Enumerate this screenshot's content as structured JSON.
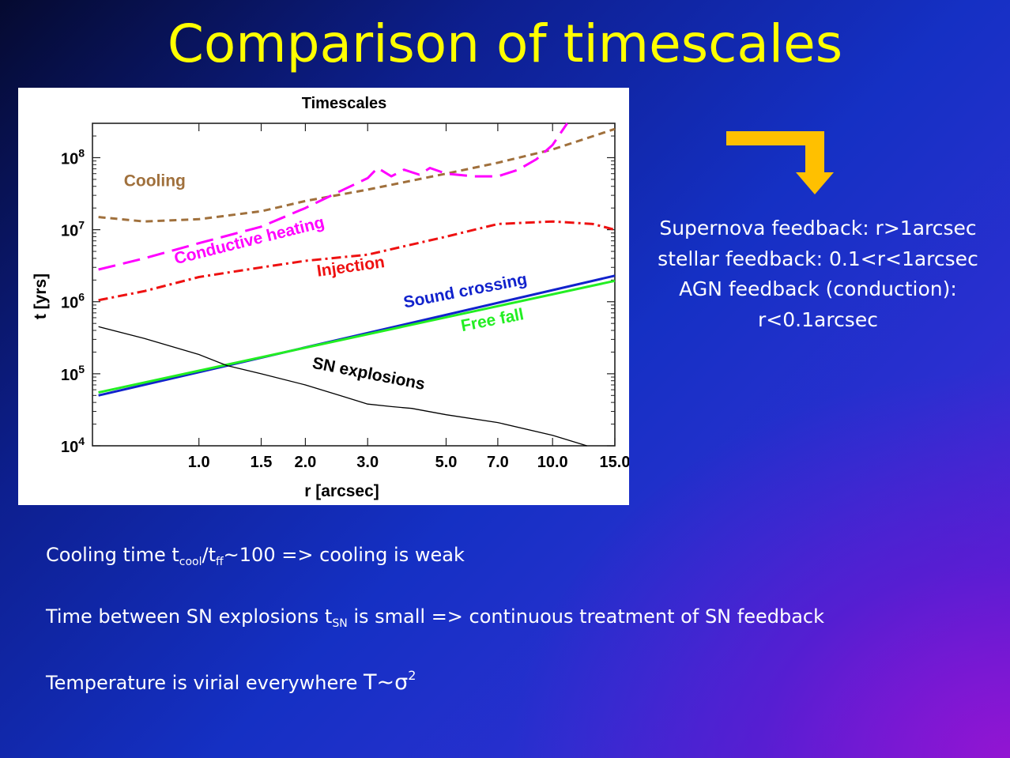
{
  "slide": {
    "title": "Comparison of timescales",
    "feedback_lines": [
      "Supernova feedback: r>1arcsec",
      "stellar feedback: 0.1<r<1arcsec",
      "AGN feedback (conduction):",
      "r<0.1arcsec"
    ],
    "notes": {
      "cooling": {
        "pre": "Cooling time t",
        "sub1": "cool",
        "mid": "/t",
        "sub2": "ff",
        "tilde": "~",
        "post": "100 => cooling is weak"
      },
      "sn": {
        "pre": "Time between SN explosions t",
        "sub": "SN",
        "post": " is small => continuous treatment of SN feedback"
      },
      "temp": {
        "pre": "Temperature is virial everywhere ",
        "sym": "T~σ",
        "sup": "2"
      }
    },
    "colors": {
      "title": "#ffff00",
      "arrow": "#ffc000",
      "text": "#ffffff"
    },
    "icons": [
      "corner-down-arrow-icon"
    ]
  },
  "chart_data": {
    "type": "line",
    "title": "Timescales",
    "xlabel": "r [arcsec]",
    "ylabel": "t [yrs]",
    "xscale": "log",
    "yscale": "log",
    "xlim": [
      0.5,
      15.0
    ],
    "ylim": [
      10000,
      300000000
    ],
    "xticks": [
      1.0,
      1.5,
      2.0,
      3.0,
      5.0,
      7.0,
      10.0,
      15.0
    ],
    "xtick_labels": [
      "1.0",
      "1.5",
      "2.0",
      "3.0",
      "5.0",
      "7.0",
      "10.0",
      "15.0"
    ],
    "yticks": [
      10000,
      100000,
      1000000,
      10000000,
      100000000
    ],
    "ytick_labels": [
      {
        "base": "10",
        "exp": "4"
      },
      {
        "base": "10",
        "exp": "5"
      },
      {
        "base": "10",
        "exp": "6"
      },
      {
        "base": "10",
        "exp": "7"
      },
      {
        "base": "10",
        "exp": "8"
      }
    ],
    "grid": false,
    "legend": "inline labels",
    "series": [
      {
        "name": "Cooling",
        "color": "#a0703c",
        "dash": "dashed",
        "label_angle": 0,
        "x": [
          0.52,
          0.7,
          1.0,
          1.5,
          2.0,
          3.0,
          5.0,
          7.0,
          10.0,
          15.0
        ],
        "y": [
          15000000,
          13000000,
          14000000,
          18000000,
          25000000,
          36000000,
          60000000,
          85000000,
          130000000,
          250000000
        ]
      },
      {
        "name": "Conductive heating",
        "color": "#ff00ff",
        "dash": "longdash",
        "label_angle": -14,
        "x": [
          0.52,
          0.7,
          1.0,
          1.5,
          2.0,
          2.5,
          3.0,
          3.2,
          3.5,
          3.8,
          4.2,
          4.5,
          5.0,
          6.0,
          7.0,
          8.0,
          9.0,
          10.0,
          11.0
        ],
        "y": [
          2800000,
          4000000,
          6500000,
          11000000,
          20000000,
          34000000,
          52000000,
          72000000,
          55000000,
          68000000,
          58000000,
          72000000,
          60000000,
          55000000,
          55000000,
          68000000,
          95000000,
          150000000,
          300000000
        ]
      },
      {
        "name": "Injection",
        "color": "#ee1111",
        "dash": "dashdot",
        "label_angle": -8,
        "x": [
          0.52,
          0.7,
          1.0,
          1.5,
          2.0,
          3.0,
          5.0,
          7.0,
          10.0,
          13.0,
          15.0
        ],
        "y": [
          1050000,
          1400000,
          2200000,
          3000000,
          3700000,
          4500000,
          8000000,
          12000000,
          13000000,
          12000000,
          10000000
        ]
      },
      {
        "name": "Sound crossing",
        "color": "#1122cc",
        "dash": "solid",
        "label_angle": -11,
        "x": [
          0.52,
          15.0
        ],
        "y": [
          50000,
          2300000
        ]
      },
      {
        "name": "Free fall",
        "color": "#22ee22",
        "dash": "solid",
        "label_angle": -11,
        "x": [
          0.52,
          15.0
        ],
        "y": [
          55000,
          1950000
        ]
      },
      {
        "name": "SN explosions",
        "color": "#000000",
        "dash": "solid",
        "label_angle": 11,
        "x": [
          0.52,
          0.7,
          1.0,
          1.2,
          1.5,
          2.0,
          2.5,
          3.0,
          3.5,
          4.0,
          5.0,
          7.0,
          10.0,
          12.5
        ],
        "y": [
          450000,
          310000,
          185000,
          130000,
          100000,
          70000,
          50000,
          38000,
          35000,
          33000,
          27000,
          21000,
          14000,
          10000
        ]
      }
    ]
  }
}
